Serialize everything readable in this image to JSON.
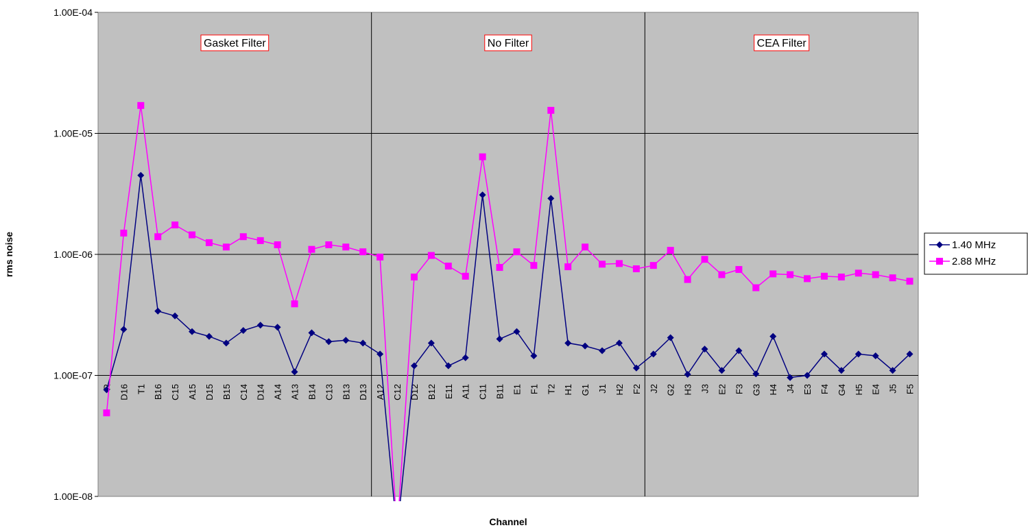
{
  "chart_data": {
    "type": "line",
    "xlabel": "Channel",
    "ylabel": "rms noise",
    "y_scale": "log",
    "ylim": [
      1e-08,
      0.0001
    ],
    "y_ticks": [
      "1.00E-08",
      "1.00E-07",
      "1.00E-06",
      "1.00E-05",
      "1.00E-04"
    ],
    "grid": true,
    "legend_position": "right",
    "categories": [
      "R",
      "D16",
      "T1",
      "B16",
      "C15",
      "A15",
      "D15",
      "B15",
      "C14",
      "D14",
      "A14",
      "A13",
      "B14",
      "C13",
      "B13",
      "D13",
      "A12",
      "C12",
      "D12",
      "B12",
      "E11",
      "A11",
      "C11",
      "B11",
      "E1",
      "F1",
      "T2",
      "H1",
      "G1",
      "J1",
      "H2",
      "F2",
      "J2",
      "G2",
      "H3",
      "J3",
      "E2",
      "F3",
      "G3",
      "H4",
      "J4",
      "E3",
      "F4",
      "G4",
      "H5",
      "E4",
      "J5",
      "F5"
    ],
    "regions": [
      {
        "label": "Gasket Filter",
        "start": "R",
        "end": "D13"
      },
      {
        "label": "No Filter",
        "start": "A12",
        "end": "F2"
      },
      {
        "label": "CEA Filter",
        "start": "J2",
        "end": "F5"
      }
    ],
    "series": [
      {
        "name": "1.40 MHz",
        "color": "#000080",
        "marker": "diamond",
        "values": [
          7.6e-08,
          2.4e-07,
          4.5e-06,
          3.4e-07,
          3.1e-07,
          2.3e-07,
          2.1e-07,
          1.85e-07,
          2.35e-07,
          2.6e-07,
          2.5e-07,
          1.07e-07,
          2.25e-07,
          1.9e-07,
          1.95e-07,
          1.85e-07,
          1.5e-07,
          5e-09,
          1.2e-07,
          1.85e-07,
          1.2e-07,
          1.4e-07,
          3.1e-06,
          2e-07,
          2.3e-07,
          1.45e-07,
          2.9e-06,
          1.85e-07,
          1.75e-07,
          1.6e-07,
          1.85e-07,
          1.15e-07,
          1.5e-07,
          2.05e-07,
          1.02e-07,
          1.65e-07,
          1.1e-07,
          1.6e-07,
          1.03e-07,
          2.1e-07,
          9.6e-08,
          1e-07,
          1.5e-07,
          1.1e-07,
          1.5e-07,
          1.45e-07,
          1.1e-07,
          1.5e-07
        ]
      },
      {
        "name": "2.88 MHz",
        "color": "#ff00ff",
        "marker": "square",
        "values": [
          4.9e-08,
          1.5e-06,
          1.7e-05,
          1.4e-06,
          1.75e-06,
          1.45e-06,
          1.25e-06,
          1.15e-06,
          1.4e-06,
          1.3e-06,
          1.2e-06,
          3.9e-07,
          1.1e-06,
          1.2e-06,
          1.15e-06,
          1.05e-06,
          9.5e-07,
          5e-09,
          6.5e-07,
          9.8e-07,
          8e-07,
          6.6e-07,
          6.4e-06,
          7.8e-07,
          1.05e-06,
          8.1e-07,
          1.55e-05,
          7.9e-07,
          1.15e-06,
          8.3e-07,
          8.4e-07,
          7.6e-07,
          8.1e-07,
          1.08e-06,
          6.2e-07,
          9.1e-07,
          6.8e-07,
          7.5e-07,
          5.3e-07,
          6.9e-07,
          6.8e-07,
          6.3e-07,
          6.6e-07,
          6.5e-07,
          7e-07,
          6.8e-07,
          6.4e-07,
          6e-07
        ]
      }
    ]
  }
}
